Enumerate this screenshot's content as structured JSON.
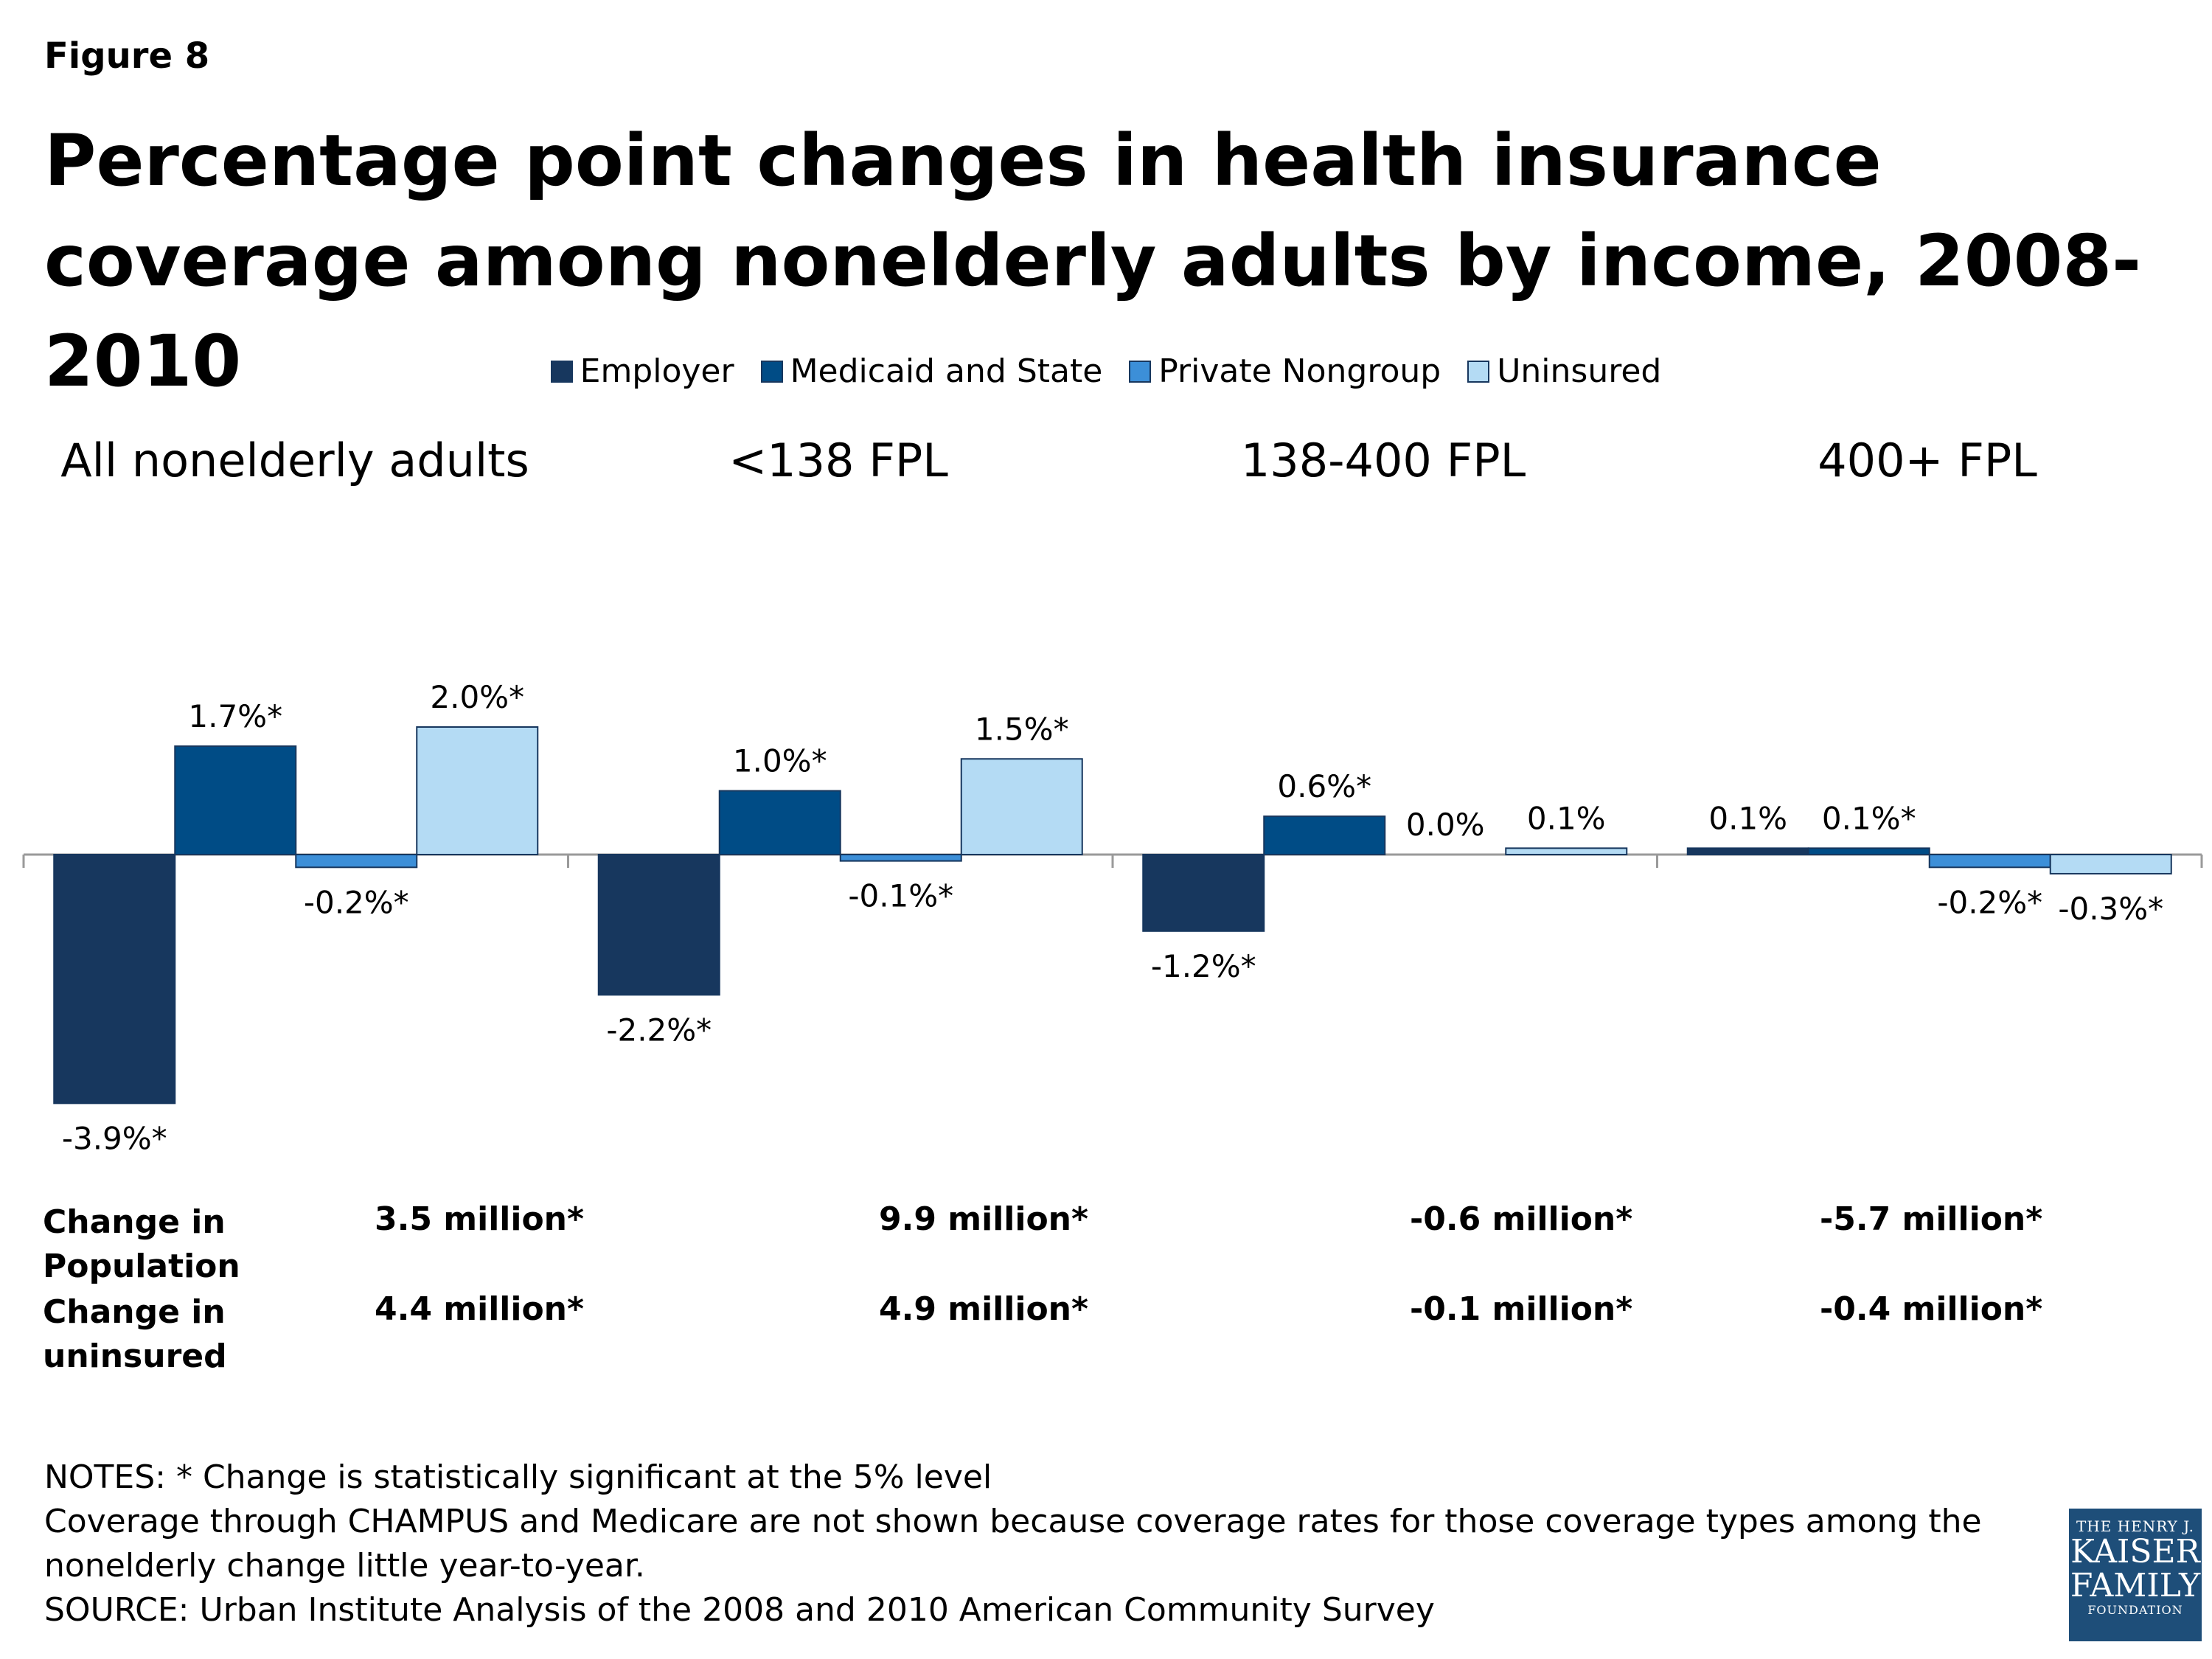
{
  "figure_label": "Figure 8",
  "title": "Percentage point changes in health insurance coverage among nonelderly adults by income, 2008-2010",
  "chart_data": {
    "type": "bar",
    "categories": [
      "All nonelderly adults",
      "<138 FPL",
      "138-400 FPL",
      "400+ FPL"
    ],
    "series": [
      {
        "name": "Employer",
        "color": "#17375e",
        "values": [
          -3.9,
          -2.2,
          -1.2,
          0.1
        ],
        "labels": [
          "-3.9%*",
          "-2.2%*",
          "-1.2%*",
          "0.1%"
        ]
      },
      {
        "name": "Medicaid and State",
        "color": "#004c86",
        "values": [
          1.7,
          1.0,
          0.6,
          0.1
        ],
        "labels": [
          "1.7%*",
          "1.0%*",
          "0.6%*",
          "0.1%*"
        ]
      },
      {
        "name": "Private Nongroup",
        "color": "#3c8fd8",
        "values": [
          -0.2,
          -0.1,
          0.0,
          -0.2
        ],
        "labels": [
          "-0.2%*",
          "-0.1%*",
          "0.0%",
          "-0.2%*"
        ]
      },
      {
        "name": "Uninsured",
        "color": "#b4dbf4",
        "values": [
          2.0,
          1.5,
          0.1,
          -0.3
        ],
        "labels": [
          "2.0%*",
          "1.5%*",
          "0.1%",
          "-0.3%*"
        ]
      }
    ],
    "legend_position": "top",
    "grid": false,
    "ylim": [
      -4.2,
      2.3
    ]
  },
  "stats": {
    "population_label": "Change in Population",
    "population_values": [
      "3.5 million*",
      "9.9 million*",
      "-0.6 million*",
      "-5.7 million*"
    ],
    "uninsured_label": "Change in uninsured",
    "uninsured_values": [
      "4.4 million*",
      "4.9 million*",
      "-0.1 million*",
      "-0.4 million*"
    ]
  },
  "notes": [
    "NOTES: * Change is statistically significant at the 5% level",
    "Coverage through CHAMPUS and Medicare are not shown because coverage rates for those coverage types among the nonelderly change little year-to-year.",
    "SOURCE: Urban Institute Analysis of the 2008 and 2010 American Community Survey"
  ],
  "logo": {
    "line1": "THE HENRY J.",
    "line2": "KAISER",
    "line3": "FAMILY",
    "line4": "FOUNDATION"
  }
}
